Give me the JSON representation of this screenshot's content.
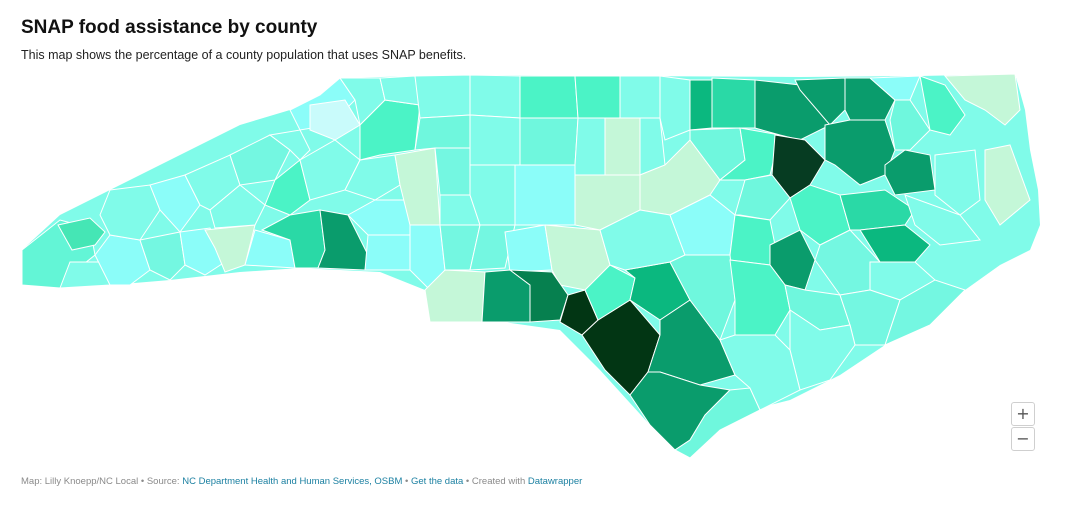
{
  "header": {
    "title": "SNAP food assistance by county",
    "subtitle": "This map shows the percentage of a county population that uses SNAP benefits."
  },
  "map": {
    "region": "North Carolina",
    "color_scale": [
      "#c4f7d8",
      "#8bfdf9",
      "#80fbe9",
      "#6ff7dd",
      "#4bf3c6",
      "#2ad9a6",
      "#0bb87f",
      "#0a9c6c",
      "#06804f",
      "#063c22",
      "#023614"
    ],
    "zoom_in_label": "+",
    "zoom_out_label": "−"
  },
  "footer": {
    "prefix": "Map: Lilly Knoepp/NC Local • Source: ",
    "source_link": "NC Department Health and Human Services, OSBM",
    "sep1": " • ",
    "get_data_link": "Get the data",
    "sep2": " • Created with ",
    "datawrapper_link": "Datawrapper"
  }
}
